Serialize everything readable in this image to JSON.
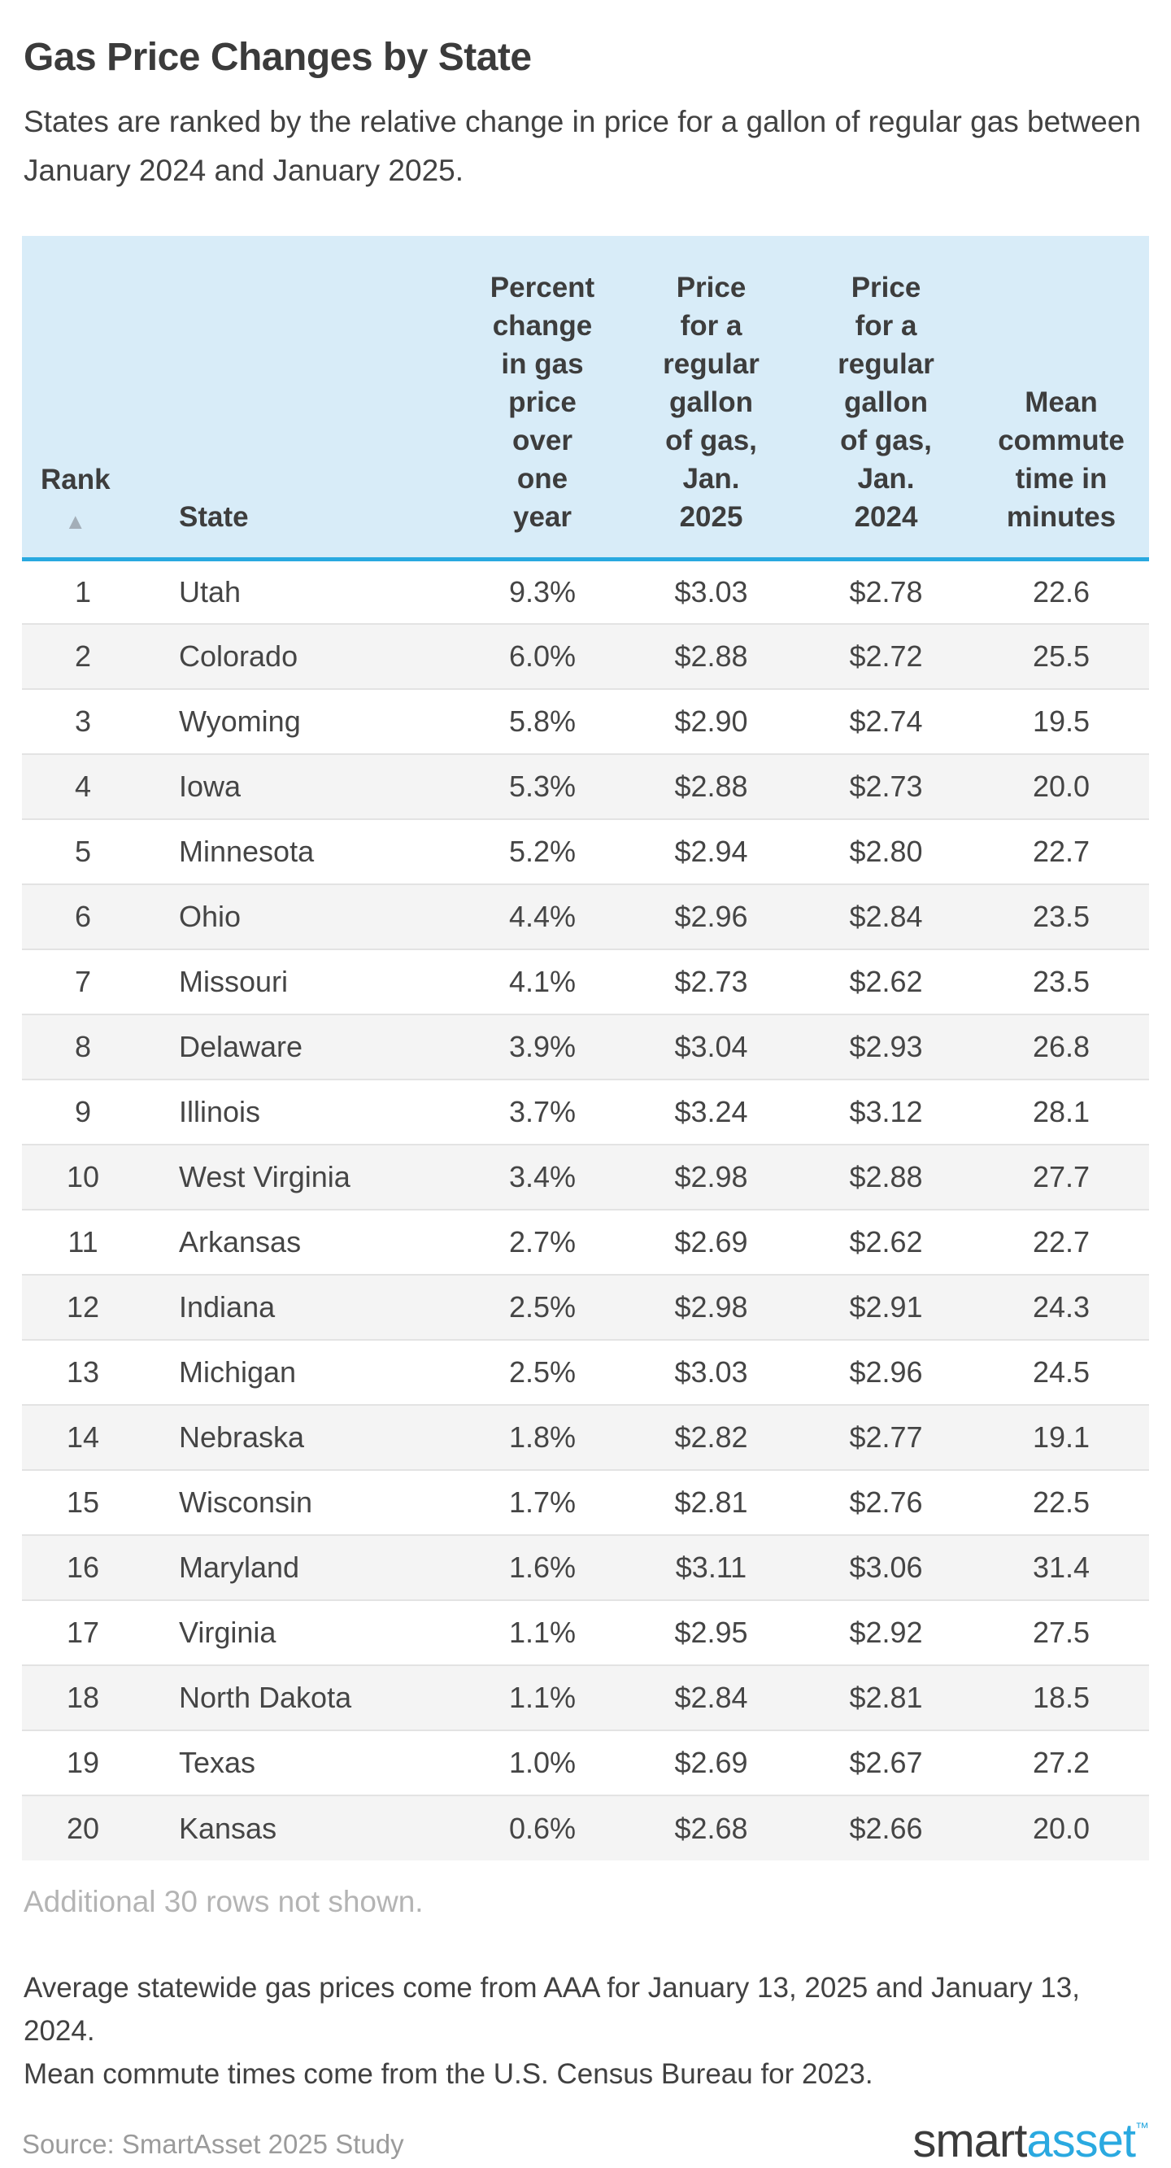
{
  "page": {
    "title": "Gas Price Changes by State",
    "subtitle": "States are ranked by the relative change in price for a gallon of regular gas between January 2024 and January 2025."
  },
  "table": {
    "sort_icon": "▲",
    "columns": [
      {
        "key": "rank",
        "label": "Rank"
      },
      {
        "key": "state",
        "label": "State"
      },
      {
        "key": "pct",
        "label": "Percent\nchange\nin gas\nprice\nover\none\nyear"
      },
      {
        "key": "p2025",
        "label": "Price\nfor a\nregular\ngallon\nof gas,\nJan.\n2025"
      },
      {
        "key": "p2024",
        "label": "Price\nfor a\nregular\ngallon\nof gas,\nJan.\n2024"
      },
      {
        "key": "commute",
        "label": "Mean\ncommute\ntime in\nminutes"
      }
    ],
    "rows": [
      {
        "rank": "1",
        "state": "Utah",
        "pct": "9.3%",
        "p2025": "$3.03",
        "p2024": "$2.78",
        "commute": "22.6"
      },
      {
        "rank": "2",
        "state": "Colorado",
        "pct": "6.0%",
        "p2025": "$2.88",
        "p2024": "$2.72",
        "commute": "25.5"
      },
      {
        "rank": "3",
        "state": "Wyoming",
        "pct": "5.8%",
        "p2025": "$2.90",
        "p2024": "$2.74",
        "commute": "19.5"
      },
      {
        "rank": "4",
        "state": "Iowa",
        "pct": "5.3%",
        "p2025": "$2.88",
        "p2024": "$2.73",
        "commute": "20.0"
      },
      {
        "rank": "5",
        "state": "Minnesota",
        "pct": "5.2%",
        "p2025": "$2.94",
        "p2024": "$2.80",
        "commute": "22.7"
      },
      {
        "rank": "6",
        "state": "Ohio",
        "pct": "4.4%",
        "p2025": "$2.96",
        "p2024": "$2.84",
        "commute": "23.5"
      },
      {
        "rank": "7",
        "state": "Missouri",
        "pct": "4.1%",
        "p2025": "$2.73",
        "p2024": "$2.62",
        "commute": "23.5"
      },
      {
        "rank": "8",
        "state": "Delaware",
        "pct": "3.9%",
        "p2025": "$3.04",
        "p2024": "$2.93",
        "commute": "26.8"
      },
      {
        "rank": "9",
        "state": "Illinois",
        "pct": "3.7%",
        "p2025": "$3.24",
        "p2024": "$3.12",
        "commute": "28.1"
      },
      {
        "rank": "10",
        "state": "West Virginia",
        "pct": "3.4%",
        "p2025": "$2.98",
        "p2024": "$2.88",
        "commute": "27.7"
      },
      {
        "rank": "11",
        "state": "Arkansas",
        "pct": "2.7%",
        "p2025": "$2.69",
        "p2024": "$2.62",
        "commute": "22.7"
      },
      {
        "rank": "12",
        "state": "Indiana",
        "pct": "2.5%",
        "p2025": "$2.98",
        "p2024": "$2.91",
        "commute": "24.3"
      },
      {
        "rank": "13",
        "state": "Michigan",
        "pct": "2.5%",
        "p2025": "$3.03",
        "p2024": "$2.96",
        "commute": "24.5"
      },
      {
        "rank": "14",
        "state": "Nebraska",
        "pct": "1.8%",
        "p2025": "$2.82",
        "p2024": "$2.77",
        "commute": "19.1"
      },
      {
        "rank": "15",
        "state": "Wisconsin",
        "pct": "1.7%",
        "p2025": "$2.81",
        "p2024": "$2.76",
        "commute": "22.5"
      },
      {
        "rank": "16",
        "state": "Maryland",
        "pct": "1.6%",
        "p2025": "$3.11",
        "p2024": "$3.06",
        "commute": "31.4"
      },
      {
        "rank": "17",
        "state": "Virginia",
        "pct": "1.1%",
        "p2025": "$2.95",
        "p2024": "$2.92",
        "commute": "27.5"
      },
      {
        "rank": "18",
        "state": "North Dakota",
        "pct": "1.1%",
        "p2025": "$2.84",
        "p2024": "$2.81",
        "commute": "18.5"
      },
      {
        "rank": "19",
        "state": "Texas",
        "pct": "1.0%",
        "p2025": "$2.69",
        "p2024": "$2.67",
        "commute": "27.2"
      },
      {
        "rank": "20",
        "state": "Kansas",
        "pct": "0.6%",
        "p2025": "$2.68",
        "p2024": "$2.66",
        "commute": "20.0"
      }
    ],
    "more_rows_note": "Additional 30 rows not shown."
  },
  "footer": {
    "note_lines": [
      "Average statewide gas prices come from AAA for January 13, 2025 and January 13, 2024.",
      "Mean commute times come from the U.S. Census Bureau for 2023."
    ],
    "source": "Source: SmartAsset 2025 Study",
    "logo": {
      "part1": "smart",
      "part2": "asset",
      "tm": "™"
    }
  },
  "colors": {
    "header_bg": "#d8ecf8",
    "header_rule": "#29a9e0",
    "alt_row_bg": "#f4f4f4",
    "row_divider": "#e3e3e3",
    "title_text": "#3b3b3b",
    "body_text": "#414141",
    "muted_text": "#b4b4b4",
    "source_text": "#9b9b9b",
    "logo_dark": "#3b3b3b",
    "logo_blue": "#2aa9e0",
    "sort_arrow": "#a3aeb8"
  },
  "chart_data": {
    "type": "table",
    "title": "Gas Price Changes by State",
    "subtitle": "States are ranked by the relative change in price for a gallon of regular gas between January 2024 and January 2025.",
    "columns": [
      "Rank",
      "State",
      "Percent change in gas price over one year",
      "Price for a regular gallon of gas, Jan. 2025",
      "Price for a regular gallon of gas, Jan. 2024",
      "Mean commute time in minutes"
    ],
    "rows": [
      [
        1,
        "Utah",
        "9.3%",
        "$3.03",
        "$2.78",
        22.6
      ],
      [
        2,
        "Colorado",
        "6.0%",
        "$2.88",
        "$2.72",
        25.5
      ],
      [
        3,
        "Wyoming",
        "5.8%",
        "$2.90",
        "$2.74",
        19.5
      ],
      [
        4,
        "Iowa",
        "5.3%",
        "$2.88",
        "$2.73",
        20.0
      ],
      [
        5,
        "Minnesota",
        "5.2%",
        "$2.94",
        "$2.80",
        22.7
      ],
      [
        6,
        "Ohio",
        "4.4%",
        "$2.96",
        "$2.84",
        23.5
      ],
      [
        7,
        "Missouri",
        "4.1%",
        "$2.73",
        "$2.62",
        23.5
      ],
      [
        8,
        "Delaware",
        "3.9%",
        "$3.04",
        "$2.93",
        26.8
      ],
      [
        9,
        "Illinois",
        "3.7%",
        "$3.24",
        "$3.12",
        28.1
      ],
      [
        10,
        "West Virginia",
        "3.4%",
        "$2.98",
        "$2.88",
        27.7
      ],
      [
        11,
        "Arkansas",
        "2.7%",
        "$2.69",
        "$2.62",
        22.7
      ],
      [
        12,
        "Indiana",
        "2.5%",
        "$2.98",
        "$2.91",
        24.3
      ],
      [
        13,
        "Michigan",
        "2.5%",
        "$3.03",
        "$2.96",
        24.5
      ],
      [
        14,
        "Nebraska",
        "1.8%",
        "$2.82",
        "$2.77",
        19.1
      ],
      [
        15,
        "Wisconsin",
        "1.7%",
        "$2.81",
        "$2.76",
        22.5
      ],
      [
        16,
        "Maryland",
        "1.6%",
        "$3.11",
        "$3.06",
        31.4
      ],
      [
        17,
        "Virginia",
        "1.1%",
        "$2.95",
        "$2.92",
        27.5
      ],
      [
        18,
        "North Dakota",
        "1.1%",
        "$2.84",
        "$2.81",
        18.5
      ],
      [
        19,
        "Texas",
        "1.0%",
        "$2.69",
        "$2.67",
        27.2
      ],
      [
        20,
        "Kansas",
        "0.6%",
        "$2.68",
        "$2.66",
        20.0
      ]
    ],
    "sort": {
      "column": "Rank",
      "direction": "ascending"
    },
    "notes": [
      "Additional 30 rows not shown.",
      "Average statewide gas prices come from AAA for January 13, 2025 and January 13, 2024.",
      "Mean commute times come from the U.S. Census Bureau for 2023.",
      "Source: SmartAsset 2025 Study"
    ]
  }
}
